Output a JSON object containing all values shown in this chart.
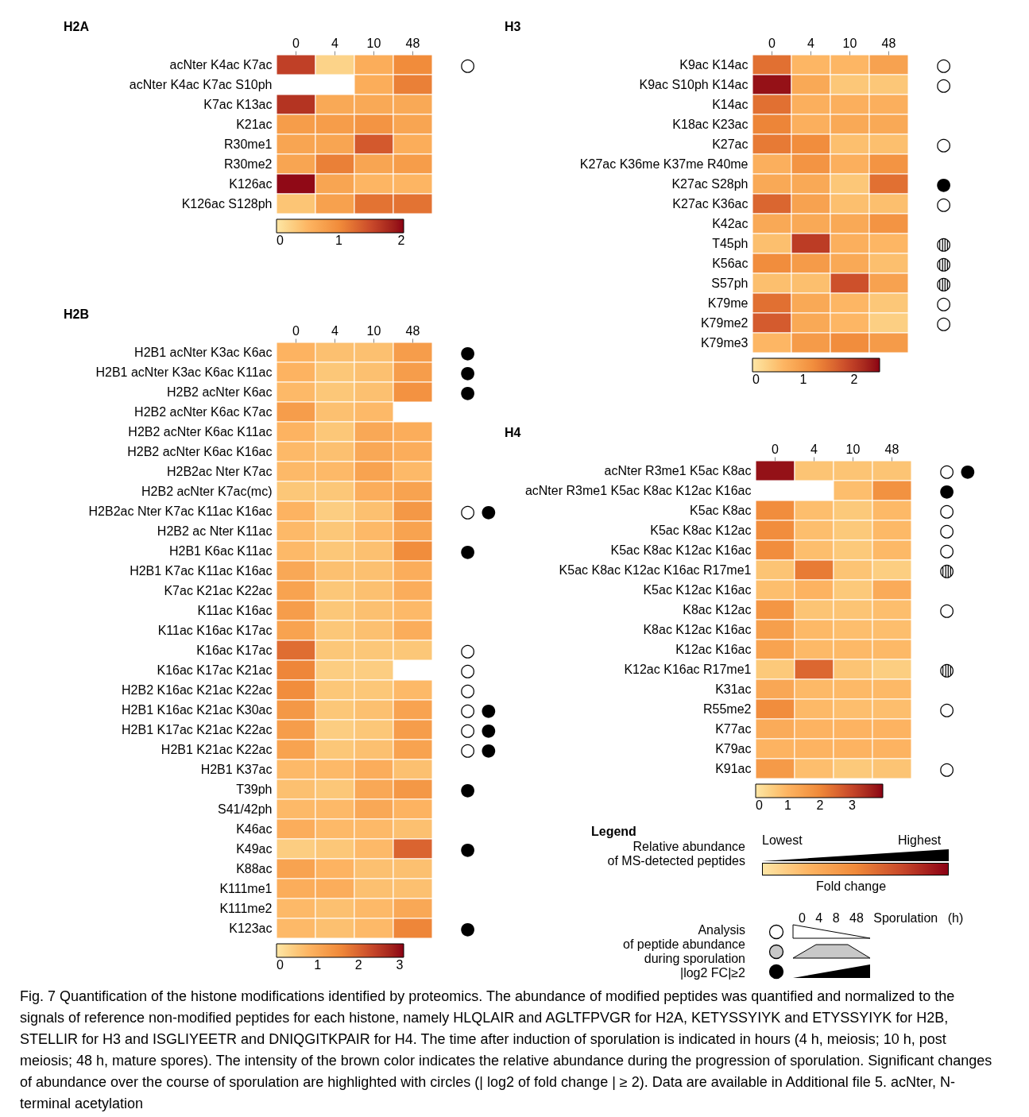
{
  "chart_data": [
    {
      "type": "heatmap",
      "title": "H2A",
      "categories": [
        "0",
        "4",
        "10",
        "48"
      ],
      "y_categories": [
        "acNter K4ac K7ac",
        "acNter K4ac K7ac S10ph",
        "K7ac K13ac",
        "K21ac",
        "R30me1",
        "R30me2",
        "K126ac",
        "K126ac S128ph"
      ],
      "y2_categories": [
        "○",
        null,
        null,
        null,
        null,
        null,
        null,
        null
      ],
      "cells": [
        [
          1.6,
          0.2,
          0.6,
          1.0
        ],
        [
          null,
          null,
          0.6,
          1.1
        ],
        [
          1.7,
          0.65,
          0.65,
          0.65
        ],
        [
          0.8,
          0.8,
          0.9,
          0.7
        ],
        [
          0.7,
          0.7,
          1.4,
          0.6
        ],
        [
          0.7,
          1.1,
          0.7,
          0.8
        ],
        [
          2.0,
          0.7,
          0.5,
          0.5
        ],
        [
          0.35,
          0.75,
          1.2,
          1.2
        ]
      ],
      "clim": [
        0,
        2.04
      ],
      "cticks": [
        0,
        1,
        2
      ]
    },
    {
      "type": "heatmap",
      "title": "H2B",
      "categories": [
        "0",
        "4",
        "10",
        "48"
      ],
      "y_categories": [
        "H2B1 acNter K3ac K6ac",
        "H2B1 acNter K3ac K6ac K11ac",
        "H2B2 acNter K6ac",
        "H2B2 acNter K6ac K7ac",
        "H2B2 acNter K6ac K11ac",
        "H2B2 acNter K6ac K16ac",
        "H2B2ac Nter K7ac",
        "H2B2 acNter K7ac(mc)",
        "H2B2ac Nter K7ac K11ac K16ac",
        "H2B2 ac Nter K11ac",
        "H2B1 K6ac K11ac",
        "H2B1 K7ac K11ac K16ac",
        "K7ac K21ac K22ac",
        "K11ac K16ac",
        "K11ac K16ac K17ac",
        "K16ac K17ac",
        "K16ac K17ac K21ac",
        "H2B2 K16ac K21ac K22ac",
        "H2B1 K16ac K21ac K30ac",
        "H2B1 K17ac K21ac K22ac",
        "H2B1 K21ac K22ac",
        "H2B1 K37ac",
        "T39ph",
        "S41/42ph",
        "K46ac",
        "K49ac",
        "K88ac",
        "K111me1",
        "K111me2",
        "K123ac"
      ],
      "y2_categories": [
        "●",
        "●",
        "●",
        null,
        null,
        null,
        null,
        null,
        "○ ●",
        null,
        "●",
        null,
        null,
        null,
        null,
        "○",
        "○",
        "○",
        "○ ●",
        "○ ●",
        "○ ●",
        null,
        "●",
        null,
        null,
        "●",
        null,
        null,
        null,
        "●"
      ],
      "cells": [
        [
          0.8,
          0.6,
          0.6,
          1.2
        ],
        [
          0.8,
          0.5,
          0.6,
          1.2
        ],
        [
          0.7,
          0.5,
          0.6,
          1.4
        ],
        [
          1.2,
          0.6,
          0.7,
          null
        ],
        [
          0.8,
          0.5,
          1.0,
          0.9
        ],
        [
          0.7,
          0.6,
          1.0,
          0.9
        ],
        [
          0.7,
          0.7,
          1.1,
          0.7
        ],
        [
          0.5,
          0.5,
          0.9,
          1.1
        ],
        [
          0.8,
          0.4,
          0.6,
          1.3
        ],
        [
          0.7,
          0.5,
          0.7,
          1.1
        ],
        [
          0.7,
          0.5,
          0.6,
          1.5
        ],
        [
          1.0,
          0.6,
          0.6,
          0.9
        ],
        [
          1.1,
          0.5,
          0.6,
          0.9
        ],
        [
          1.2,
          0.5,
          0.6,
          0.7
        ],
        [
          1.1,
          0.5,
          0.6,
          0.9
        ],
        [
          1.9,
          0.5,
          0.5,
          0.5
        ],
        [
          1.6,
          0.4,
          0.4,
          null
        ],
        [
          1.5,
          0.5,
          0.5,
          0.7
        ],
        [
          1.3,
          0.5,
          0.6,
          1.1
        ],
        [
          1.2,
          0.4,
          0.5,
          1.2
        ],
        [
          1.1,
          0.5,
          0.6,
          1.1
        ],
        [
          0.7,
          0.7,
          0.9,
          0.6
        ],
        [
          0.6,
          0.5,
          1.0,
          1.3
        ],
        [
          0.7,
          0.7,
          1.0,
          0.8
        ],
        [
          0.9,
          0.7,
          0.7,
          0.6
        ],
        [
          0.4,
          0.5,
          0.7,
          2.0
        ],
        [
          1.1,
          0.8,
          0.6,
          0.6
        ],
        [
          0.9,
          0.9,
          0.6,
          0.6
        ],
        [
          0.7,
          0.6,
          0.7,
          1.0
        ],
        [
          0.7,
          0.6,
          0.7,
          1.6
        ]
      ],
      "clim": [
        0,
        3.1
      ],
      "cticks": [
        0,
        1,
        2,
        3
      ]
    },
    {
      "type": "heatmap",
      "title": "H3",
      "categories": [
        "0",
        "4",
        "10",
        "48"
      ],
      "y_categories": [
        "K9ac K14ac",
        "K9ac S10ph K14ac",
        "K14ac",
        "K18ac K23ac",
        "K27ac",
        "K27ac K36me K37me R40me",
        "K27ac S28ph",
        "K27ac K36ac",
        "K42ac",
        "T45ph",
        "K56ac",
        "S57ph",
        "K79me",
        "K79me2",
        "K79me3"
      ],
      "y2_categories": [
        "○",
        "○",
        null,
        null,
        "○",
        null,
        "●",
        "○",
        null,
        "◍",
        "◍",
        "◍",
        "○",
        "○",
        null
      ],
      "cells": [
        [
          1.5,
          0.6,
          0.6,
          0.9
        ],
        [
          2.4,
          0.8,
          0.4,
          0.4
        ],
        [
          1.5,
          0.7,
          0.7,
          0.7
        ],
        [
          1.3,
          0.7,
          0.8,
          0.8
        ],
        [
          1.4,
          1.2,
          0.5,
          0.5
        ],
        [
          0.7,
          1.1,
          0.7,
          1.1
        ],
        [
          0.8,
          0.8,
          0.4,
          1.5
        ],
        [
          1.6,
          0.9,
          0.5,
          0.5
        ],
        [
          0.8,
          0.8,
          0.8,
          1.1
        ],
        [
          0.5,
          2.0,
          0.7,
          0.6
        ],
        [
          1.2,
          1.0,
          0.8,
          0.5
        ],
        [
          0.5,
          0.5,
          1.8,
          0.9
        ],
        [
          1.5,
          0.8,
          0.6,
          0.4
        ],
        [
          1.7,
          0.8,
          0.6,
          0.3
        ],
        [
          0.6,
          1.0,
          1.2,
          1.0
        ]
      ],
      "clim": [
        0,
        2.5
      ],
      "cticks": [
        0,
        1,
        2
      ]
    },
    {
      "type": "heatmap",
      "title": "H4",
      "categories": [
        "0",
        "4",
        "10",
        "48"
      ],
      "y_categories": [
        "acNter R3me1 K5ac K8ac",
        "acNter R3me1 K5ac K8ac K12ac K16ac",
        "K5ac K8ac",
        "K5ac K8ac K12ac",
        "K5ac K8ac K12ac K16ac",
        "K5ac K8ac K12ac K16ac R17me1",
        "K5ac K12ac K16ac",
        "K8ac K12ac",
        "K8ac K12ac K16ac",
        "K12ac K16ac",
        "K12ac K16ac R17me1",
        "K31ac",
        "R55me2",
        "K77ac",
        "K79ac",
        "K91ac"
      ],
      "y2_categories": [
        "○ ●",
        "●",
        "○",
        "○",
        "○",
        "◍",
        null,
        "○",
        null,
        null,
        "◍",
        null,
        "○",
        null,
        null,
        "○"
      ],
      "cells": [
        [
          3.8,
          0.7,
          0.7,
          0.7
        ],
        [
          null,
          null,
          0.8,
          1.8
        ],
        [
          1.9,
          0.8,
          0.6,
          0.9
        ],
        [
          1.9,
          0.8,
          0.6,
          0.9
        ],
        [
          1.9,
          0.8,
          0.6,
          0.9
        ],
        [
          0.7,
          2.2,
          0.7,
          0.5
        ],
        [
          0.8,
          1.0,
          0.6,
          1.2
        ],
        [
          1.7,
          0.7,
          0.7,
          0.8
        ],
        [
          1.5,
          0.9,
          0.8,
          0.8
        ],
        [
          1.4,
          0.9,
          0.9,
          0.9
        ],
        [
          0.6,
          2.5,
          0.7,
          0.5
        ],
        [
          1.3,
          0.9,
          0.9,
          0.9
        ],
        [
          1.9,
          0.9,
          0.8,
          0.8
        ],
        [
          1.2,
          1.0,
          1.0,
          1.0
        ],
        [
          1.0,
          1.0,
          1.0,
          1.0
        ],
        [
          1.6,
          0.8,
          0.6,
          0.7
        ]
      ],
      "clim": [
        0,
        3.95
      ],
      "cticks": [
        0,
        1,
        2,
        3
      ]
    },
    {
      "type": "other",
      "title": "Legend",
      "annotations": [
        "Relative abundance",
        "of MS-detected peptides",
        "Lowest",
        "Highest",
        "Fold change",
        "0 4 8 48 Sporulation (h)",
        "Analysis",
        "of peptide abundance",
        "during sporulation",
        "|log2 FC|≥2",
        "Fig. 7 Quantification of the histone modifications identified by proteomics. The abundance of modified peptides was quantified and normalized to the signals of reference non-modified peptides for each histone, namely HLQLAIR and AGLTFPVGR for H2A, KETYSSYIYK and ETYSSYIYK for H2B, STELLIR for H3 and ISGLIYEETR and DNIQGITKPAIR for H4. The time after induction of sporulation is indicated in hours (4 h, meiosis; 10 h, post meiosis; 48 h, mature spores). The intensity of the brown color indicates the relative abundance during the progression of sporulation. Significant changes of abundance over the course of sporulation are highlighted with circles (| log2 of fold change | ≥ 2). Data are available in Additional file 5. acNter, N-terminal acetylation"
      ]
    }
  ]
}
